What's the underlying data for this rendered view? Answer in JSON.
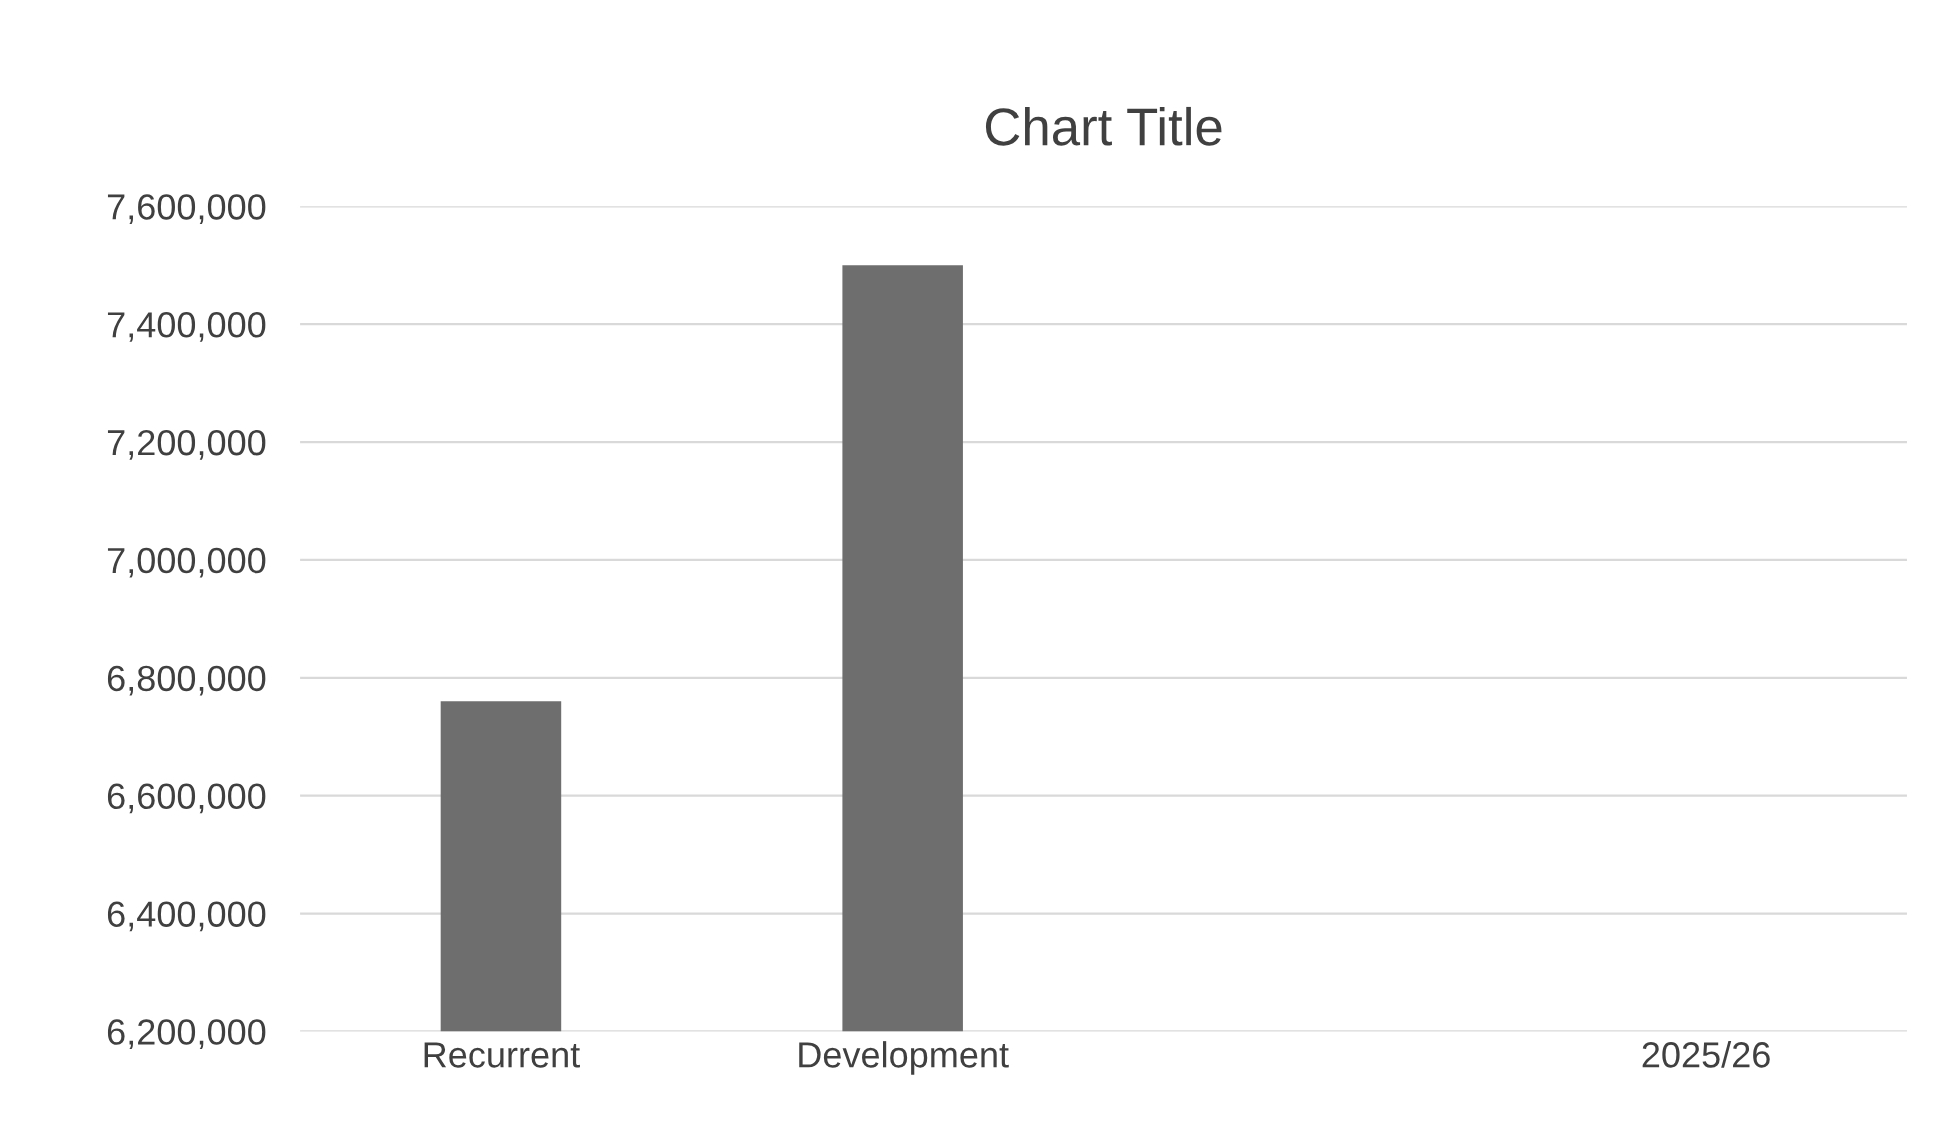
{
  "chart_data": {
    "type": "bar",
    "title": "Chart Title",
    "categories": [
      "Recurrent",
      "Development",
      null,
      "2025/26"
    ],
    "values": [
      6760000,
      7500000,
      null,
      null
    ],
    "color": "#6e6e6e",
    "ylim": [
      6200000,
      7600000
    ],
    "yticks": [
      {
        "value": 6200000,
        "label": "6,200,000"
      },
      {
        "value": 6400000,
        "label": "6,400,000"
      },
      {
        "value": 6600000,
        "label": "6,600,000"
      },
      {
        "value": 6800000,
        "label": "6,800,000"
      },
      {
        "value": 7000000,
        "label": "7,000,000"
      },
      {
        "value": 7200000,
        "label": "7,200,000"
      },
      {
        "value": 7400000,
        "label": "7,400,000"
      },
      {
        "value": 7600000,
        "label": "7,600,000"
      }
    ],
    "grid": "y"
  }
}
